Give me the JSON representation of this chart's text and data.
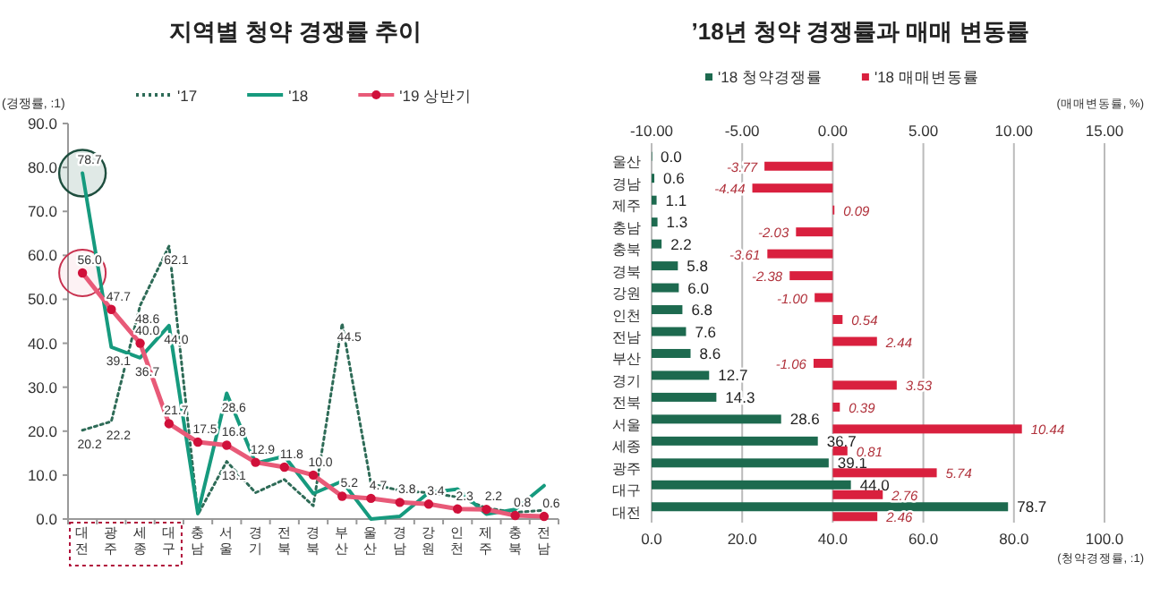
{
  "chart_data": [
    {
      "type": "line",
      "title": "지역별 청약 경쟁률 추이",
      "ylabel": "(경쟁률, :1)",
      "categories": [
        "대전",
        "광주",
        "세종",
        "대구",
        "충남",
        "서울",
        "경기",
        "전북",
        "경북",
        "부산",
        "울산",
        "경남",
        "강원",
        "인천",
        "제주",
        "충북",
        "전남"
      ],
      "series": [
        {
          "name": "'17",
          "color": "#2e6b57",
          "line_style": "dotted",
          "marker": "none",
          "values": [
            20.2,
            22.2,
            48.6,
            62.1,
            1.0,
            13.1,
            6.0,
            9.0,
            3.0,
            44.5,
            8.0,
            6.5,
            6.0,
            5.0,
            2.5,
            1.5,
            2.0
          ],
          "value_labels": [
            "20.2",
            "22.2",
            "48.6",
            "62.1",
            null,
            "13.1",
            null,
            null,
            null,
            "44.5",
            null,
            null,
            null,
            null,
            null,
            null,
            null
          ]
        },
        {
          "name": "'18",
          "color": "#169a7e",
          "line_style": "solid",
          "marker": "none",
          "values": [
            78.7,
            39.1,
            36.7,
            44.0,
            1.3,
            28.6,
            12.7,
            14.3,
            5.8,
            8.6,
            0.0,
            0.6,
            6.0,
            6.8,
            1.1,
            2.2,
            7.6
          ],
          "value_labels": [
            "78.7",
            "39.1",
            "36.7",
            "44.0",
            null,
            "28.6",
            null,
            null,
            null,
            null,
            null,
            null,
            null,
            null,
            null,
            null,
            null
          ]
        },
        {
          "name": "'19 상반기",
          "color": "#e85a78",
          "line_style": "solid",
          "marker": "circle",
          "values": [
            56.0,
            47.7,
            40.0,
            21.7,
            17.5,
            16.8,
            12.9,
            11.8,
            10.0,
            5.2,
            4.7,
            3.8,
            3.4,
            2.3,
            2.2,
            0.8,
            0.6
          ],
          "value_labels": [
            "56.0",
            "47.7",
            "40.0",
            "21.7",
            "17.5",
            "16.8",
            "12.9",
            "11.8",
            "10.0",
            "5.2",
            "4.7",
            "3.8",
            "3.4",
            "2.3",
            "2.2",
            "0.8",
            "0.6"
          ]
        }
      ],
      "ylim": [
        0,
        90
      ],
      "yticks": [
        {
          "value": 0,
          "label": "0.0"
        },
        {
          "value": 10,
          "label": "10.0"
        },
        {
          "value": 20,
          "label": "20.0"
        },
        {
          "value": 30,
          "label": "30.0"
        },
        {
          "value": 40,
          "label": "40.0"
        },
        {
          "value": 50,
          "label": "50.0"
        },
        {
          "value": 60,
          "label": "60.0"
        },
        {
          "value": 70,
          "label": "70.0"
        },
        {
          "value": 80,
          "label": "80.0"
        },
        {
          "value": 90,
          "label": "90.0"
        }
      ],
      "legend": "top",
      "grid": false
    },
    {
      "type": "bar",
      "orientation": "horizontal",
      "title": "’18년 청약 경쟁률과 매매 변동률",
      "xlabel": "(청약경쟁률, :1)",
      "x2label": "(매매변동률, %)",
      "categories": [
        "울산",
        "경남",
        "제주",
        "충남",
        "충북",
        "경북",
        "강원",
        "인천",
        "전남",
        "부산",
        "경기",
        "전북",
        "서울",
        "세종",
        "광주",
        "대구",
        "대전"
      ],
      "series": [
        {
          "name": "'18 청약경쟁률",
          "color": "#1d6a4f",
          "values": [
            0.0,
            0.6,
            1.1,
            1.3,
            2.2,
            5.8,
            6.0,
            6.8,
            7.6,
            8.6,
            12.7,
            14.3,
            28.6,
            36.7,
            39.1,
            44.0,
            78.7
          ],
          "value_labels": [
            "0.0",
            "0.6",
            "1.1",
            "1.3",
            "2.2",
            "5.8",
            "6.0",
            "6.8",
            "7.6",
            "8.6",
            "12.7",
            "14.3",
            "28.6",
            "36.7",
            "39.1",
            "44.0",
            "78.7"
          ]
        },
        {
          "name": "'18 매매변동률",
          "color": "#d9203e",
          "axis": "x2",
          "values": [
            -3.77,
            -4.44,
            0.09,
            -2.03,
            -3.61,
            -2.38,
            -1.0,
            0.54,
            2.44,
            -1.06,
            3.53,
            0.39,
            10.44,
            0.81,
            5.74,
            2.76,
            2.46
          ],
          "value_labels": [
            "-3.77",
            "-4.44",
            "0.09",
            "-2.03",
            "-3.61",
            "-2.38",
            "-1.00",
            "0.54",
            "2.44",
            "-1.06",
            "3.53",
            "0.39",
            "10.44",
            "0.81",
            "5.74",
            "2.76",
            "2.46"
          ]
        }
      ],
      "xlim": [
        0,
        100
      ],
      "xticks": [
        {
          "value": 0,
          "label": "0.0"
        },
        {
          "value": 20,
          "label": "20.0"
        },
        {
          "value": 40,
          "label": "40.0"
        },
        {
          "value": 60,
          "label": "60.0"
        },
        {
          "value": 80,
          "label": "80.0"
        },
        {
          "value": 100,
          "label": "100.0"
        }
      ],
      "x2lim": [
        -10,
        15
      ],
      "x2ticks": [
        {
          "value": -10,
          "label": "-10.00"
        },
        {
          "value": -5,
          "label": "-5.00"
        },
        {
          "value": 0,
          "label": "0.00"
        },
        {
          "value": 5,
          "label": "5.00"
        },
        {
          "value": 10,
          "label": "10.00"
        },
        {
          "value": 15,
          "label": "15.00"
        }
      ],
      "legend": "top",
      "grid": "x"
    }
  ]
}
